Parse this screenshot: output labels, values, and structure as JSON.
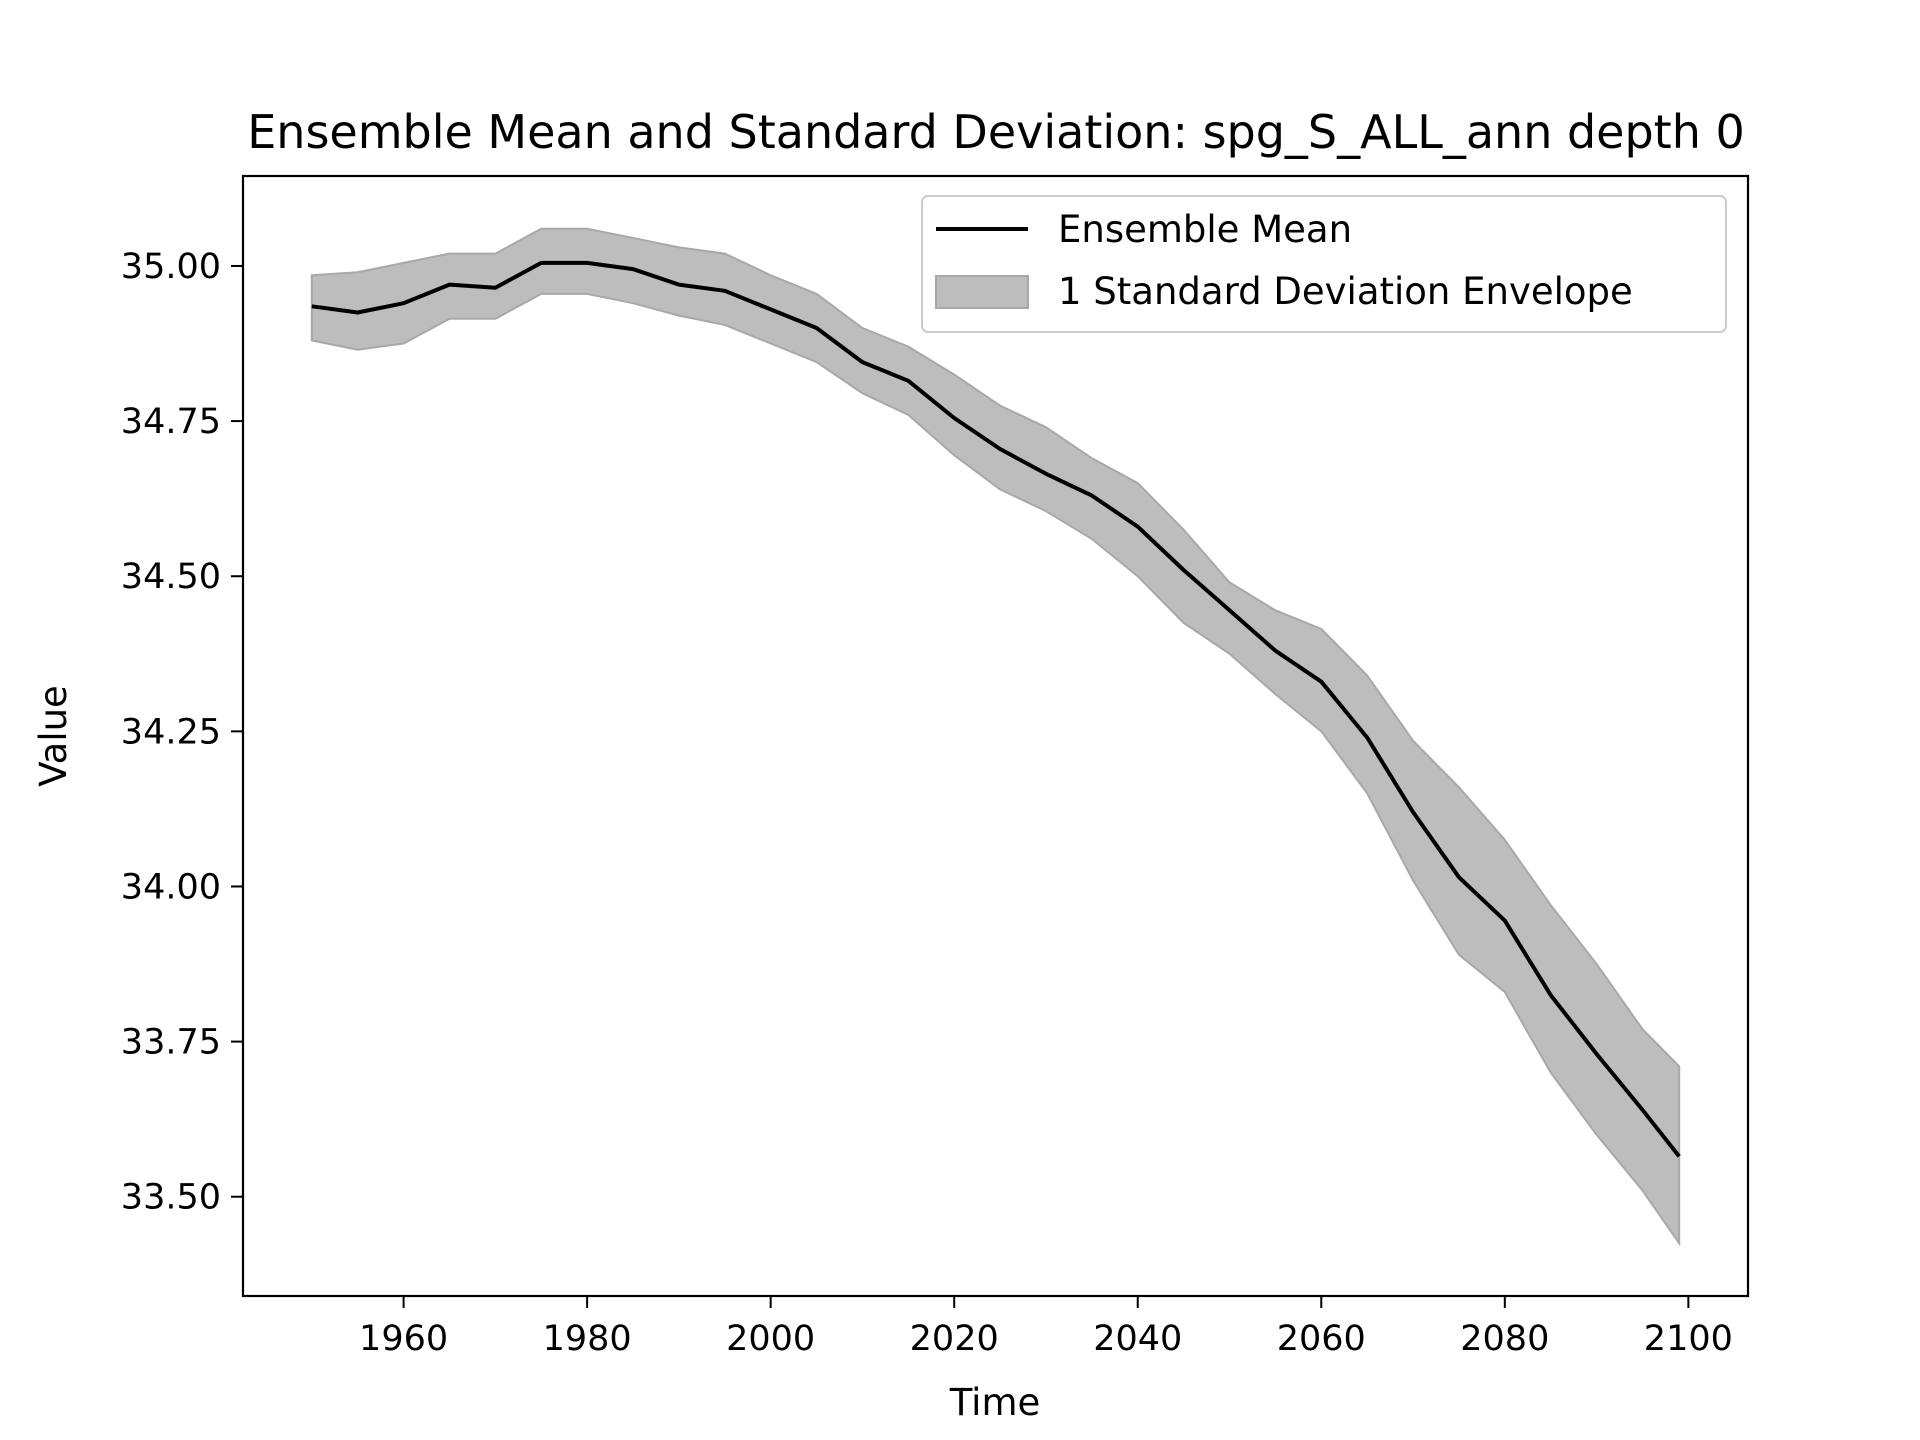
{
  "chart_data": {
    "type": "line",
    "title": "Ensemble Mean and Standard Deviation: spg_S_ALL_ann depth 0",
    "xlabel": "Time",
    "ylabel": "Value",
    "xlim": [
      1942.5,
      2106.5
    ],
    "ylim": [
      33.34,
      35.145
    ],
    "xticks": [
      1960,
      1980,
      2000,
      2020,
      2040,
      2060,
      2080,
      2100
    ],
    "xtick_labels": [
      "1960",
      "1980",
      "2000",
      "2020",
      "2040",
      "2060",
      "2080",
      "2100"
    ],
    "yticks": [
      33.5,
      33.75,
      34.0,
      34.25,
      34.5,
      34.75,
      35.0
    ],
    "ytick_labels": [
      "33.50",
      "33.75",
      "34.00",
      "34.25",
      "34.50",
      "34.75",
      "35.00"
    ],
    "grid": false,
    "legend_position": "top-right",
    "series": [
      {
        "name": "Ensemble Mean",
        "color": "#000000",
        "x": [
          1950,
          1955,
          1960,
          1965,
          1970,
          1975,
          1980,
          1985,
          1990,
          1995,
          2000,
          2005,
          2010,
          2015,
          2020,
          2025,
          2030,
          2035,
          2040,
          2045,
          2050,
          2055,
          2060,
          2065,
          2070,
          2075,
          2080,
          2085,
          2090,
          2095,
          2099
        ],
        "y": [
          34.935,
          34.925,
          34.94,
          34.97,
          34.965,
          35.005,
          35.005,
          34.995,
          34.97,
          34.96,
          34.93,
          34.9,
          34.845,
          34.815,
          34.755,
          34.705,
          34.665,
          34.63,
          34.58,
          34.51,
          34.445,
          34.38,
          34.33,
          34.24,
          34.12,
          34.015,
          33.945,
          33.825,
          33.73,
          33.64,
          33.565
        ]
      },
      {
        "name": "1 Standard Deviation Envelope",
        "kind": "band",
        "color": "#bdbdbd",
        "edge_color": "#a8a8a8",
        "x": [
          1950,
          1955,
          1960,
          1965,
          1970,
          1975,
          1980,
          1985,
          1990,
          1995,
          2000,
          2005,
          2010,
          2015,
          2020,
          2025,
          2030,
          2035,
          2040,
          2045,
          2050,
          2055,
          2060,
          2065,
          2070,
          2075,
          2080,
          2085,
          2090,
          2095,
          2099
        ],
        "lower": [
          34.88,
          34.865,
          34.875,
          34.915,
          34.915,
          34.955,
          34.955,
          34.94,
          34.92,
          34.905,
          34.875,
          34.845,
          34.795,
          34.76,
          34.695,
          34.64,
          34.605,
          34.56,
          34.5,
          34.425,
          34.375,
          34.31,
          34.25,
          34.15,
          34.01,
          33.89,
          33.83,
          33.7,
          33.6,
          33.51,
          33.425
        ],
        "upper": [
          34.985,
          34.99,
          35.005,
          35.02,
          35.02,
          35.06,
          35.06,
          35.045,
          35.03,
          35.02,
          34.985,
          34.955,
          34.9,
          34.87,
          34.825,
          34.775,
          34.74,
          34.69,
          34.65,
          34.575,
          34.49,
          34.445,
          34.415,
          34.34,
          34.235,
          34.16,
          34.075,
          33.97,
          33.875,
          33.77,
          33.71
        ]
      }
    ]
  }
}
